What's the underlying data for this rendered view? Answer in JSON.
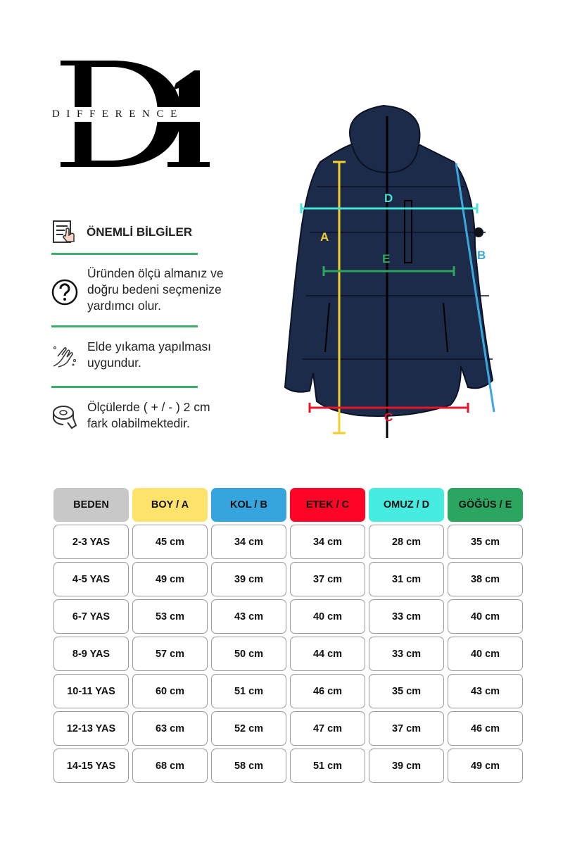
{
  "logo": {
    "mark": "D1",
    "brand": "DIFFERENCE"
  },
  "info": {
    "title": "ÖNEMLİ BİLGİLER",
    "items": [
      {
        "icon": "question-circle-icon",
        "text": [
          "Üründen ölçü almanız ve",
          "doğru bedeni seçmenize",
          "yardımcı olur."
        ]
      },
      {
        "icon": "hand-wash-icon",
        "text": [
          "Elde yıkama yapılması",
          "uygundur."
        ]
      },
      {
        "icon": "measuring-tape-icon",
        "text": [
          "Ölçülerde ( + / - ) 2 cm",
          "fark olabilmektedir."
        ]
      }
    ],
    "divider_color": "#3cad6b"
  },
  "diagram": {
    "labels": {
      "A": "A",
      "B": "B",
      "C": "C",
      "D": "D",
      "E": "E"
    },
    "colors": {
      "A": "#f2cf2c",
      "B": "#3aa7dd",
      "C": "#e8142a",
      "D": "#44e3d6",
      "E": "#2ea45e",
      "jacket": "#1d2b4a"
    }
  },
  "table": {
    "headers": [
      {
        "label": "BEDEN",
        "color": "#c8c8c8"
      },
      {
        "label": "BOY / A",
        "color": "#fde36a"
      },
      {
        "label": "KOL / B",
        "color": "#37a5dd"
      },
      {
        "label": "ETEK / C",
        "color": "#fc0526"
      },
      {
        "label": "OMUZ / D",
        "color": "#46ece0"
      },
      {
        "label": "GÖĞÜS / E",
        "color": "#2aa660"
      }
    ],
    "rows": [
      [
        "2-3 YAS",
        "45 cm",
        "34 cm",
        "34 cm",
        "28 cm",
        "35 cm"
      ],
      [
        "4-5 YAS",
        "49 cm",
        "39 cm",
        "37 cm",
        "31 cm",
        "38 cm"
      ],
      [
        "6-7 YAS",
        "53 cm",
        "43 cm",
        "40 cm",
        "33 cm",
        "40 cm"
      ],
      [
        "8-9 YAS",
        "57 cm",
        "50 cm",
        "44 cm",
        "33 cm",
        "40 cm"
      ],
      [
        "10-11 YAS",
        "60 cm",
        "51 cm",
        "46 cm",
        "35 cm",
        "43 cm"
      ],
      [
        "12-13 YAS",
        "63 cm",
        "52 cm",
        "47 cm",
        "37 cm",
        "46 cm"
      ],
      [
        "14-15 YAS",
        "68 cm",
        "58 cm",
        "51 cm",
        "39 cm",
        "49 cm"
      ]
    ]
  }
}
